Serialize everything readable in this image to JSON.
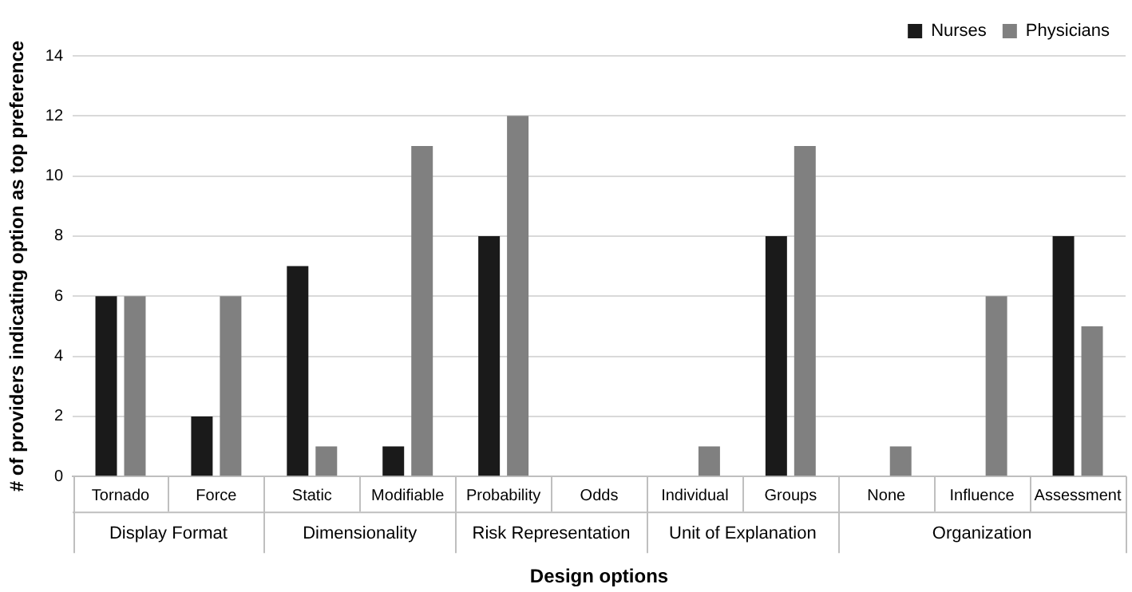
{
  "chart_data": {
    "type": "bar",
    "xlabel": "Design options",
    "ylabel": "# of providers indicating option as top preference",
    "categories": [
      "Tornado",
      "Force",
      "Static",
      "Modifiable",
      "Probability",
      "Odds",
      "Individual",
      "Groups",
      "None",
      "Influence",
      "Assessment"
    ],
    "annotations": [
      "Display Format",
      "Dimensionality",
      "Risk Representation",
      "Unit of Explanation",
      "Organization"
    ],
    "series": [
      {
        "name": "Nurses",
        "color": "#1a1a1a",
        "values": [
          6,
          2,
          7,
          1,
          8,
          0,
          0,
          8,
          0,
          0,
          8
        ]
      },
      {
        "name": "Physicians",
        "color": "#808080",
        "values": [
          6,
          6,
          1,
          11,
          12,
          0,
          1,
          11,
          1,
          6,
          5
        ]
      }
    ],
    "ylim": [
      0,
      14
    ],
    "yticks": [
      0,
      2,
      4,
      6,
      8,
      10,
      12,
      14
    ],
    "grid": "y",
    "legend": "top right"
  }
}
